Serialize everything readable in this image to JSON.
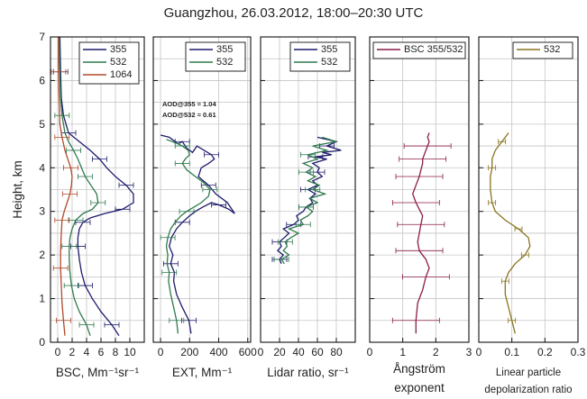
{
  "figure": {
    "title": "Guangzhou, 26.03.2012, 18:00–20:30 UTC"
  },
  "colors": {
    "c355": "#1d1b6b",
    "c532": "#2e7a4e",
    "c1064": "#b04a28",
    "angstrom": "#8b1c4a",
    "depol": "#8a7420",
    "grid": "#c4c4c4"
  },
  "chart_data": [
    {
      "type": "line",
      "panel": "bsc",
      "ylabel": "Height, km",
      "xlabel": "BSC, Mm⁻¹sr⁻¹",
      "xlim": [
        -1,
        12
      ],
      "xticks": [
        0,
        2,
        4,
        6,
        8,
        10
      ],
      "ylim": [
        0,
        7
      ],
      "yticks": [
        0,
        1,
        2,
        3,
        4,
        5,
        6,
        7
      ],
      "grid": true,
      "legend_position": "top-right",
      "series": [
        {
          "name": "355",
          "color_key": "c355",
          "x": [
            8.5,
            7.5,
            6.0,
            4.8,
            3.8,
            3.3,
            3.0,
            2.8,
            2.8,
            3.0,
            3.5,
            4.5,
            6.5,
            9.0,
            10.5,
            10.5,
            9.5,
            8.0,
            6.8,
            5.8,
            4.5,
            3.0,
            1.5,
            0.8,
            0.5,
            0.4,
            0.3
          ],
          "y": [
            0.15,
            0.4,
            0.7,
            1.0,
            1.3,
            1.6,
            1.9,
            2.2,
            2.4,
            2.6,
            2.75,
            2.85,
            2.95,
            3.05,
            3.2,
            3.4,
            3.6,
            3.8,
            4.0,
            4.2,
            4.4,
            4.6,
            4.8,
            5.2,
            5.6,
            6.2,
            7.0
          ]
        },
        {
          "name": "532",
          "color_key": "c532",
          "x": [
            4.5,
            4.0,
            3.0,
            2.3,
            1.9,
            1.7,
            1.6,
            1.6,
            1.7,
            2.0,
            2.5,
            3.5,
            4.8,
            5.6,
            5.4,
            4.6,
            3.8,
            3.3,
            2.8,
            2.2,
            1.5,
            1.0,
            0.6,
            0.4,
            0.3,
            0.2
          ],
          "y": [
            0.15,
            0.4,
            0.7,
            1.0,
            1.3,
            1.6,
            1.9,
            2.2,
            2.4,
            2.6,
            2.8,
            2.95,
            3.05,
            3.2,
            3.4,
            3.6,
            3.8,
            4.0,
            4.2,
            4.4,
            4.6,
            4.8,
            5.2,
            5.6,
            6.2,
            7.0
          ]
        },
        {
          "name": "1064",
          "color_key": "c1064",
          "x": [
            1.0,
            0.8,
            0.6,
            0.5,
            0.4,
            0.4,
            0.5,
            0.6,
            0.9,
            1.3,
            1.7,
            1.9,
            2.0,
            1.8,
            1.4,
            1.0,
            0.6,
            0.3,
            0.2,
            0.1,
            0.1
          ],
          "y": [
            0.15,
            0.5,
            0.9,
            1.3,
            1.7,
            2.1,
            2.5,
            2.8,
            3.0,
            3.2,
            3.4,
            3.6,
            3.8,
            4.0,
            4.2,
            4.4,
            4.7,
            5.0,
            5.5,
            6.2,
            7.0
          ]
        }
      ]
    },
    {
      "type": "line",
      "panel": "ext",
      "xlabel": "EXT, Mm⁻¹",
      "xlim": [
        -50,
        620
      ],
      "xticks": [
        0,
        200,
        400,
        600
      ],
      "ylim": [
        0,
        7
      ],
      "grid": true,
      "legend_position": "top-right",
      "annotations": [
        "AOD@355 = 1.04",
        "AOD@532 = 0.61"
      ],
      "series": [
        {
          "name": "355",
          "color_key": "c355",
          "x": [
            210,
            195,
            150,
            110,
            90,
            95,
            70,
            85,
            60,
            75,
            110,
            150,
            200,
            240,
            290,
            350,
            400,
            470,
            510,
            460,
            380,
            330,
            260,
            280,
            330,
            370,
            350,
            300,
            250,
            220,
            180,
            150,
            120,
            60,
            0
          ],
          "y": [
            0.2,
            0.5,
            0.8,
            1.1,
            1.4,
            1.6,
            1.8,
            2.0,
            2.2,
            2.4,
            2.6,
            2.75,
            2.9,
            3.0,
            3.1,
            3.2,
            3.15,
            3.05,
            2.95,
            3.2,
            3.4,
            3.6,
            3.8,
            4.0,
            4.1,
            4.2,
            4.3,
            4.4,
            4.5,
            4.35,
            4.45,
            4.6,
            4.55,
            4.7,
            4.75
          ]
        },
        {
          "name": "532",
          "color_key": "c532",
          "x": [
            120,
            110,
            90,
            70,
            55,
            60,
            45,
            50,
            40,
            50,
            70,
            100,
            140,
            180,
            230,
            280,
            330,
            340,
            300,
            240,
            180,
            150,
            170,
            200,
            190,
            150,
            120,
            80,
            40
          ],
          "y": [
            0.2,
            0.5,
            0.8,
            1.1,
            1.4,
            1.6,
            1.8,
            2.0,
            2.2,
            2.4,
            2.6,
            2.75,
            2.9,
            3.0,
            3.1,
            3.2,
            3.35,
            3.5,
            3.65,
            3.8,
            3.95,
            4.1,
            4.2,
            4.3,
            4.4,
            4.5,
            4.55,
            4.6,
            4.65
          ]
        }
      ]
    },
    {
      "type": "line",
      "panel": "lidar_ratio",
      "xlabel": "Lidar ratio, sr⁻¹",
      "xlim": [
        0,
        100
      ],
      "xticks": [
        0,
        20,
        40,
        60,
        80
      ],
      "ylim": [
        0,
        7
      ],
      "grid": true,
      "legend_position": "top-right",
      "series": [
        {
          "name": "355",
          "color_key": "c355",
          "x": [
            22,
            20,
            24,
            18,
            22,
            20,
            25,
            30,
            24,
            35,
            40,
            38,
            45,
            48,
            55,
            52,
            58,
            50,
            60,
            55,
            65,
            60,
            62,
            55,
            70,
            58,
            75,
            65,
            85,
            70,
            80,
            60
          ],
          "y": [
            1.8,
            1.9,
            2.0,
            2.1,
            2.2,
            2.3,
            2.4,
            2.5,
            2.6,
            2.7,
            2.8,
            2.9,
            3.0,
            3.1,
            3.2,
            3.3,
            3.4,
            3.5,
            3.6,
            3.7,
            3.8,
            3.9,
            4.0,
            4.1,
            4.2,
            4.25,
            4.3,
            4.35,
            4.4,
            4.5,
            4.6,
            4.7
          ]
        },
        {
          "name": "532",
          "color_key": "c532",
          "x": [
            25,
            22,
            30,
            24,
            28,
            26,
            32,
            40,
            30,
            45,
            42,
            50,
            55,
            48,
            60,
            52,
            68,
            55,
            62,
            50,
            58,
            48,
            55,
            45,
            60,
            50,
            70,
            55,
            80,
            65
          ],
          "y": [
            1.8,
            1.9,
            2.0,
            2.1,
            2.2,
            2.3,
            2.4,
            2.5,
            2.6,
            2.7,
            2.8,
            2.9,
            3.0,
            3.1,
            3.2,
            3.3,
            3.4,
            3.5,
            3.6,
            3.7,
            3.8,
            3.9,
            4.0,
            4.1,
            4.2,
            4.3,
            4.4,
            4.5,
            4.6,
            4.7
          ]
        }
      ]
    },
    {
      "type": "line",
      "panel": "angstrom",
      "xlabel": "Ångström exponent",
      "xlim": [
        0,
        3
      ],
      "xticks": [
        0,
        1,
        2,
        3
      ],
      "ylim": [
        0,
        7
      ],
      "grid": true,
      "legend_position": "top",
      "series": [
        {
          "name": "BSC 355/532",
          "color_key": "angstrom",
          "x": [
            1.4,
            1.4,
            1.45,
            1.6,
            1.7,
            1.8,
            1.7,
            1.5,
            1.45,
            1.5,
            1.55,
            1.6,
            1.5,
            1.4,
            1.3,
            1.4,
            1.5,
            1.55,
            1.6,
            1.6,
            1.65,
            1.7,
            1.75,
            1.8,
            1.75,
            1.8
          ],
          "y": [
            0.2,
            0.5,
            0.9,
            1.2,
            1.5,
            1.7,
            1.9,
            2.1,
            2.3,
            2.5,
            2.7,
            2.9,
            3.05,
            3.2,
            3.4,
            3.6,
            3.8,
            3.95,
            4.1,
            4.2,
            4.3,
            4.4,
            4.5,
            4.6,
            4.7,
            4.8
          ]
        }
      ]
    },
    {
      "type": "line",
      "panel": "depol",
      "xlabel": "Linear particle depolarization ratio",
      "xlim": [
        0,
        0.3
      ],
      "xticks": [
        0,
        0.1,
        0.2,
        0.3
      ],
      "ylim": [
        0,
        7
      ],
      "grid": true,
      "legend_position": "top-right",
      "series": [
        {
          "name": "532",
          "color_key": "depol",
          "x": [
            0.11,
            0.1,
            0.09,
            0.08,
            0.08,
            0.09,
            0.11,
            0.14,
            0.155,
            0.15,
            0.12,
            0.08,
            0.05,
            0.04,
            0.035,
            0.035,
            0.04,
            0.04,
            0.05,
            0.07,
            0.09
          ],
          "y": [
            0.2,
            0.5,
            0.8,
            1.1,
            1.4,
            1.6,
            1.8,
            2.0,
            2.2,
            2.4,
            2.6,
            2.8,
            3.0,
            3.2,
            3.5,
            3.8,
            4.0,
            4.2,
            4.4,
            4.6,
            4.8
          ]
        }
      ]
    }
  ]
}
